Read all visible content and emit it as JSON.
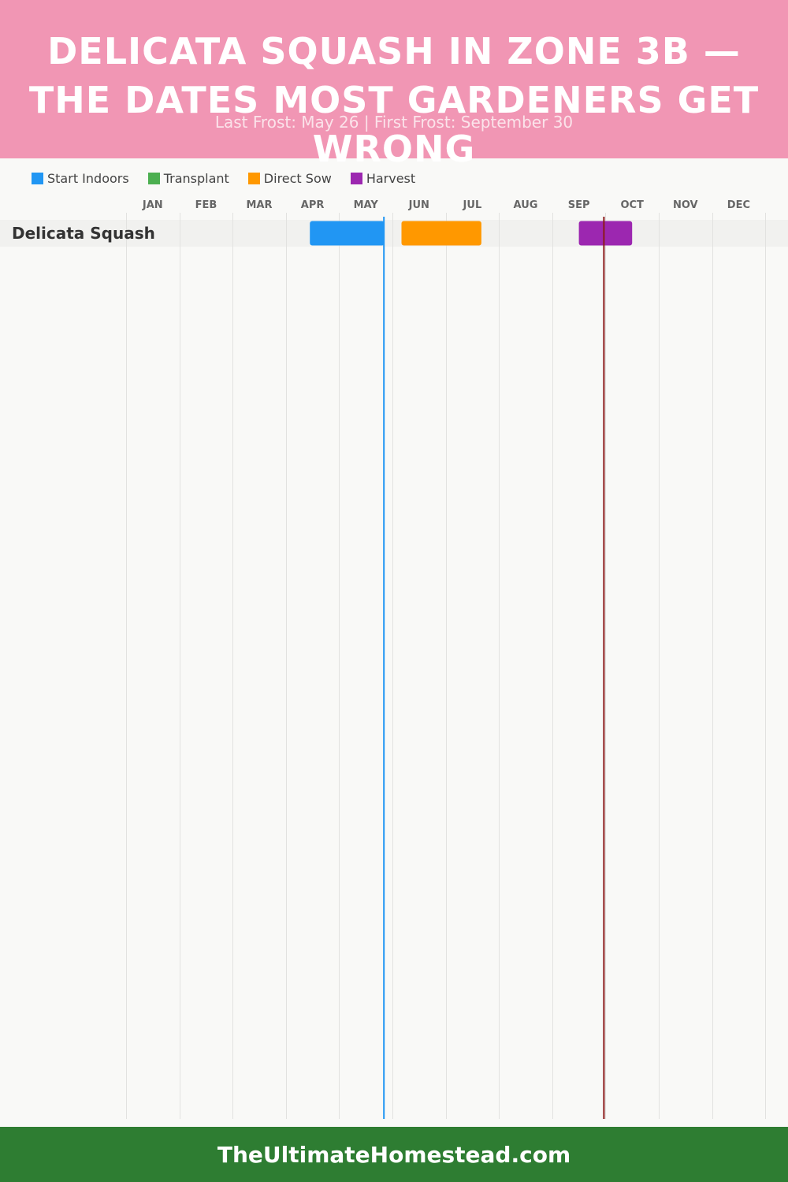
{
  "header": {
    "title": "DELICATA SQUASH IN ZONE 3B — THE DATES MOST GARDENERS GET WRONG",
    "subtitle": "Last Frost: May 26 | First Frost: September 30"
  },
  "legend": [
    {
      "label": "Start Indoors",
      "color": "#2196f3"
    },
    {
      "label": "Transplant",
      "color": "#4caf50"
    },
    {
      "label": "Direct Sow",
      "color": "#ff9800"
    },
    {
      "label": "Harvest",
      "color": "#9c27b0"
    }
  ],
  "chart_data": {
    "type": "gantt",
    "months": [
      "JAN",
      "FEB",
      "MAR",
      "APR",
      "MAY",
      "JUN",
      "JUL",
      "AUG",
      "SEP",
      "OCT",
      "NOV",
      "DEC"
    ],
    "rows": [
      {
        "label": "Delicata Squash",
        "tasks": [
          {
            "phase": "Start Indoors",
            "start": "Apr 14",
            "end": "May 26",
            "start_month": 3.45,
            "end_month": 4.85,
            "color": "#2196f3"
          },
          {
            "phase": "Direct Sow",
            "start": "Jun 5",
            "end": "Jul 20",
            "start_month": 5.17,
            "end_month": 6.67,
            "color": "#ff9800"
          },
          {
            "phase": "Harvest",
            "start": "Sep 15",
            "end": "Oct 16",
            "start_month": 8.5,
            "end_month": 9.5,
            "color": "#9c27b0"
          }
        ]
      }
    ],
    "markers": [
      {
        "name": "Last Frost",
        "date": "May 26",
        "month_position": 4.84,
        "color": "#2196f3"
      },
      {
        "name": "First Frost",
        "date": "September 30",
        "month_position": 8.97,
        "color": "#8b1a1a"
      }
    ]
  },
  "footer": {
    "text": "TheUltimateHomestead.com"
  }
}
